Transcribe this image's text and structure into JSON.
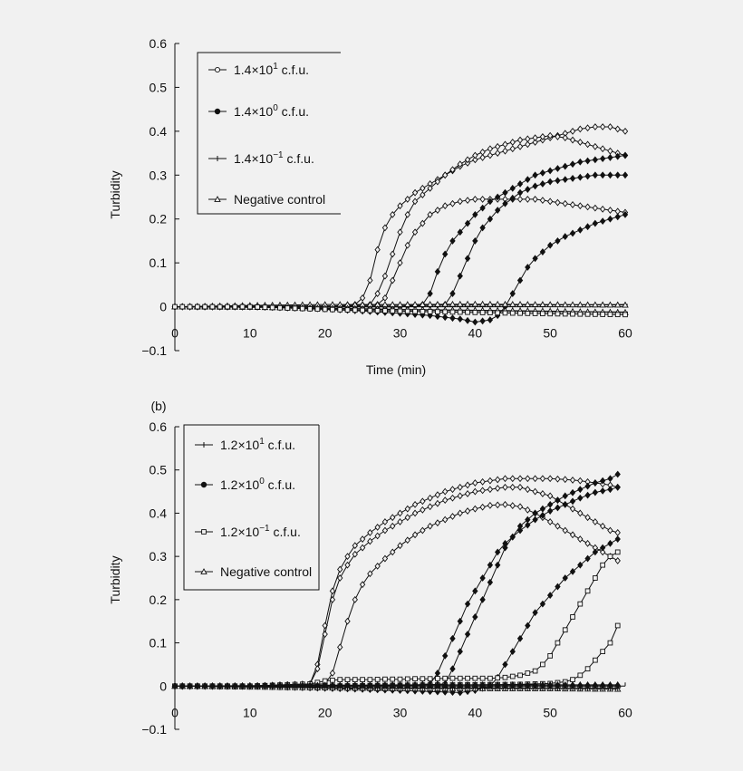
{
  "chart_data": [
    {
      "type": "line",
      "panel_label": "",
      "xlabel": "Time (min)",
      "ylabel": "Turbidity",
      "xlim": [
        0,
        60
      ],
      "ylim": [
        -0.1,
        0.6
      ],
      "x_ticks": [
        0,
        10,
        20,
        30,
        40,
        50,
        60
      ],
      "y_ticks": [
        -0.1,
        0,
        0.1,
        0.2,
        0.3,
        0.4,
        0.5,
        0.6
      ],
      "grid": false,
      "legend_position": "top-left",
      "legend": [
        {
          "mantissa": "1.4",
          "exp": "1",
          "suffix": "c.f.u.",
          "marker": "open-circle"
        },
        {
          "mantissa": "1.4",
          "exp": "0",
          "suffix": "c.f.u.",
          "marker": "filled-circle"
        },
        {
          "mantissa": "1.4",
          "exp": "−1",
          "suffix": "c.f.u.",
          "marker": "plus"
        },
        {
          "text": "Negative control",
          "marker": "open-triangle"
        }
      ],
      "series": [
        {
          "legend_index": 0,
          "marker": "open-diamond",
          "x": [
            0,
            10,
            20,
            24,
            25,
            26,
            27,
            28,
            29,
            30,
            32,
            34,
            36,
            38,
            40,
            42,
            44,
            46,
            48,
            50,
            52,
            54,
            56,
            58,
            60
          ],
          "values": [
            0,
            0,
            0,
            0.005,
            0.02,
            0.06,
            0.13,
            0.18,
            0.21,
            0.23,
            0.26,
            0.28,
            0.3,
            0.32,
            0.335,
            0.345,
            0.355,
            0.365,
            0.375,
            0.385,
            0.395,
            0.405,
            0.41,
            0.41,
            0.4
          ]
        },
        {
          "legend_index": 0,
          "marker": "open-diamond",
          "x": [
            0,
            10,
            20,
            26,
            27,
            28,
            29,
            30,
            31,
            32,
            34,
            36,
            38,
            40,
            42,
            44,
            46,
            48,
            50,
            52,
            54,
            56,
            58,
            60
          ],
          "values": [
            0,
            0,
            0,
            0.005,
            0.03,
            0.07,
            0.12,
            0.17,
            0.21,
            0.24,
            0.27,
            0.3,
            0.325,
            0.345,
            0.36,
            0.37,
            0.38,
            0.385,
            0.39,
            0.385,
            0.375,
            0.365,
            0.355,
            0.345
          ]
        },
        {
          "legend_index": 0,
          "marker": "open-diamond",
          "x": [
            0,
            10,
            20,
            27,
            28,
            29,
            30,
            31,
            32,
            33,
            34,
            36,
            38,
            40,
            42,
            44,
            46,
            48,
            50,
            52,
            54,
            56,
            58,
            60
          ],
          "values": [
            0,
            0,
            0,
            0.005,
            0.02,
            0.06,
            0.1,
            0.14,
            0.17,
            0.19,
            0.21,
            0.23,
            0.24,
            0.245,
            0.245,
            0.245,
            0.245,
            0.245,
            0.24,
            0.235,
            0.23,
            0.225,
            0.22,
            0.215
          ]
        },
        {
          "legend_index": 1,
          "marker": "filled-diamond",
          "x": [
            0,
            10,
            20,
            30,
            33,
            34,
            35,
            36,
            37,
            38,
            39,
            40,
            42,
            44,
            46,
            48,
            50,
            52,
            54,
            56,
            58,
            60
          ],
          "values": [
            0,
            0,
            0,
            0,
            0.005,
            0.03,
            0.08,
            0.12,
            0.15,
            0.17,
            0.19,
            0.21,
            0.24,
            0.26,
            0.28,
            0.3,
            0.31,
            0.32,
            0.33,
            0.335,
            0.34,
            0.345
          ]
        },
        {
          "legend_index": 1,
          "marker": "filled-diamond",
          "x": [
            0,
            10,
            20,
            30,
            36,
            37,
            38,
            39,
            40,
            41,
            42,
            43,
            44,
            46,
            48,
            50,
            52,
            54,
            56,
            58,
            60
          ],
          "values": [
            0,
            0,
            0,
            0,
            0.005,
            0.03,
            0.07,
            0.11,
            0.15,
            0.18,
            0.2,
            0.22,
            0.235,
            0.26,
            0.275,
            0.285,
            0.29,
            0.295,
            0.3,
            0.3,
            0.3
          ]
        },
        {
          "legend_index": 1,
          "marker": "filled-diamond",
          "x": [
            0,
            10,
            20,
            30,
            34,
            38,
            40,
            42,
            43,
            44,
            45,
            46,
            47,
            48,
            49,
            50,
            52,
            54,
            56,
            58,
            60
          ],
          "values": [
            0,
            0,
            -0.005,
            -0.015,
            -0.02,
            -0.028,
            -0.035,
            -0.03,
            -0.02,
            0,
            0.03,
            0.06,
            0.09,
            0.11,
            0.125,
            0.14,
            0.16,
            0.175,
            0.19,
            0.2,
            0.21
          ]
        },
        {
          "legend_index": 2,
          "marker": "plus",
          "x": [
            0,
            10,
            20,
            30,
            40,
            50,
            60
          ],
          "values": [
            0,
            0.002,
            0.002,
            0.003,
            0.004,
            0.004,
            0.005
          ]
        },
        {
          "legend_index": 2,
          "marker": "plus",
          "x": [
            0,
            10,
            20,
            30,
            40,
            50,
            60
          ],
          "values": [
            0,
            0,
            -0.004,
            -0.007,
            -0.009,
            -0.011,
            -0.012
          ]
        },
        {
          "legend_index": 3,
          "marker": "open-triangle",
          "x": [
            0,
            10,
            20,
            30,
            40,
            50,
            60
          ],
          "values": [
            0,
            0.003,
            0.005,
            0.005,
            0.006,
            0.005,
            0.004
          ]
        },
        {
          "legend_index": 3,
          "marker": "open-triangle",
          "x": [
            0,
            10,
            20,
            30,
            40,
            50,
            60
          ],
          "values": [
            0,
            -0.001,
            -0.003,
            -0.006,
            -0.008,
            -0.01,
            -0.013
          ]
        },
        {
          "legend_index": 2,
          "marker": "open-square",
          "x": [
            0,
            10,
            20,
            30,
            40,
            50,
            60
          ],
          "values": [
            0,
            0,
            -0.006,
            -0.01,
            -0.013,
            -0.016,
            -0.018
          ]
        }
      ]
    },
    {
      "type": "line",
      "panel_label": "(b)",
      "xlabel": "",
      "ylabel": "Turbidity",
      "xlim": [
        0,
        60
      ],
      "ylim": [
        -0.1,
        0.6
      ],
      "x_ticks": [
        0,
        10,
        20,
        30,
        40,
        50,
        60
      ],
      "y_ticks": [
        -0.1,
        0,
        0.1,
        0.2,
        0.3,
        0.4,
        0.5,
        0.6
      ],
      "grid": false,
      "legend_position": "top-left",
      "legend": [
        {
          "mantissa": "1.2",
          "exp": "1",
          "suffix": "c.f.u.",
          "marker": "plus"
        },
        {
          "mantissa": "1.2",
          "exp": "0",
          "suffix": "c.f.u.",
          "marker": "filled-circle"
        },
        {
          "mantissa": "1.2",
          "exp": "−1",
          "suffix": "c.f.u.",
          "marker": "open-square"
        },
        {
          "text": "Negative control",
          "marker": "open-triangle"
        }
      ],
      "series": [
        {
          "legend_index": 0,
          "marker": "open-diamond",
          "x": [
            0,
            10,
            18,
            19,
            20,
            21,
            22,
            23,
            24,
            26,
            28,
            30,
            32,
            34,
            36,
            38,
            40,
            42,
            44,
            46,
            48,
            50,
            52,
            54,
            56,
            58,
            59
          ],
          "values": [
            0,
            0,
            0.005,
            0.05,
            0.14,
            0.22,
            0.27,
            0.3,
            0.325,
            0.355,
            0.38,
            0.4,
            0.42,
            0.435,
            0.45,
            0.46,
            0.47,
            0.475,
            0.48,
            0.48,
            0.48,
            0.48,
            0.478,
            0.475,
            0.47,
            0.465,
            0.46
          ]
        },
        {
          "legend_index": 0,
          "marker": "open-diamond",
          "x": [
            0,
            10,
            18,
            19,
            20,
            21,
            22,
            23,
            24,
            26,
            28,
            30,
            32,
            34,
            36,
            38,
            40,
            42,
            44,
            46,
            48,
            50,
            52,
            54,
            56,
            58,
            59
          ],
          "values": [
            0,
            0,
            0.005,
            0.04,
            0.12,
            0.2,
            0.25,
            0.28,
            0.305,
            0.335,
            0.36,
            0.38,
            0.4,
            0.415,
            0.43,
            0.44,
            0.45,
            0.455,
            0.46,
            0.46,
            0.45,
            0.44,
            0.42,
            0.4,
            0.38,
            0.36,
            0.355
          ]
        },
        {
          "legend_index": 0,
          "marker": "open-diamond",
          "x": [
            0,
            10,
            20,
            21,
            22,
            23,
            24,
            25,
            26,
            28,
            30,
            32,
            34,
            36,
            38,
            40,
            42,
            44,
            46,
            48,
            50,
            52,
            54,
            56,
            58,
            59
          ],
          "values": [
            0,
            0,
            0.005,
            0.03,
            0.09,
            0.15,
            0.2,
            0.235,
            0.26,
            0.295,
            0.325,
            0.35,
            0.37,
            0.385,
            0.4,
            0.41,
            0.418,
            0.42,
            0.415,
            0.4,
            0.38,
            0.36,
            0.34,
            0.32,
            0.3,
            0.29
          ]
        },
        {
          "legend_index": 1,
          "marker": "filled-diamond",
          "x": [
            0,
            10,
            20,
            30,
            34,
            35,
            36,
            37,
            38,
            39,
            40,
            41,
            42,
            43,
            44,
            46,
            48,
            50,
            52,
            54,
            56,
            58,
            59
          ],
          "values": [
            0,
            0,
            0,
            0,
            0.005,
            0.03,
            0.07,
            0.11,
            0.15,
            0.19,
            0.22,
            0.25,
            0.28,
            0.31,
            0.33,
            0.36,
            0.385,
            0.405,
            0.42,
            0.435,
            0.448,
            0.455,
            0.46
          ]
        },
        {
          "legend_index": 1,
          "marker": "filled-diamond",
          "x": [
            0,
            10,
            20,
            30,
            36,
            37,
            38,
            39,
            40,
            41,
            42,
            43,
            44,
            46,
            48,
            50,
            52,
            54,
            56,
            58,
            59
          ],
          "values": [
            0,
            0,
            0,
            0,
            0.005,
            0.04,
            0.08,
            0.12,
            0.16,
            0.2,
            0.24,
            0.28,
            0.32,
            0.37,
            0.4,
            0.42,
            0.44,
            0.455,
            0.47,
            0.48,
            0.49
          ]
        },
        {
          "legend_index": 1,
          "marker": "filled-diamond",
          "x": [
            0,
            10,
            20,
            30,
            38,
            40,
            42,
            43,
            44,
            45,
            46,
            47,
            48,
            49,
            50,
            52,
            54,
            56,
            58,
            59
          ],
          "values": [
            0,
            0,
            -0.005,
            -0.01,
            -0.015,
            -0.01,
            0,
            0.02,
            0.05,
            0.08,
            0.11,
            0.14,
            0.17,
            0.19,
            0.21,
            0.25,
            0.28,
            0.31,
            0.33,
            0.34
          ]
        },
        {
          "legend_index": 2,
          "marker": "open-square",
          "x": [
            0,
            10,
            18,
            20,
            22,
            24,
            26,
            28,
            30,
            32,
            34,
            36,
            38,
            40,
            42,
            44,
            46,
            48,
            49,
            50,
            51,
            52,
            53,
            54,
            55,
            56,
            57,
            58,
            59
          ],
          "values": [
            0,
            0,
            0.005,
            0.012,
            0.015,
            0.015,
            0.015,
            0.016,
            0.016,
            0.017,
            0.017,
            0.018,
            0.018,
            0.018,
            0.018,
            0.02,
            0.025,
            0.035,
            0.05,
            0.07,
            0.1,
            0.13,
            0.16,
            0.19,
            0.22,
            0.25,
            0.28,
            0.3,
            0.31
          ]
        },
        {
          "legend_index": 2,
          "marker": "open-square",
          "x": [
            0,
            10,
            20,
            30,
            40,
            46,
            50,
            52,
            53,
            54,
            55,
            56,
            57,
            58,
            59
          ],
          "values": [
            0,
            0,
            0,
            0.002,
            0.003,
            0.004,
            0.006,
            0.01,
            0.015,
            0.025,
            0.04,
            0.06,
            0.08,
            0.1,
            0.14
          ]
        },
        {
          "legend_index": 3,
          "marker": "open-triangle",
          "x": [
            0,
            10,
            20,
            30,
            40,
            50,
            59
          ],
          "values": [
            0,
            0.001,
            0.002,
            0.003,
            0.003,
            0.003,
            0.003
          ]
        },
        {
          "legend_index": 3,
          "marker": "open-triangle",
          "x": [
            0,
            10,
            20,
            30,
            40,
            50,
            59
          ],
          "values": [
            0,
            -0.002,
            -0.004,
            -0.006,
            -0.006,
            -0.006,
            -0.007
          ]
        },
        {
          "legend_index": 2,
          "marker": "plus",
          "x": [
            0,
            10,
            20,
            30,
            40,
            50,
            59
          ],
          "values": [
            0,
            0,
            -0.003,
            -0.004,
            -0.004,
            -0.005,
            -0.005
          ]
        },
        {
          "legend_index": 1,
          "marker": "filled-diamond",
          "x": [
            0,
            10,
            20,
            30,
            40,
            50,
            59
          ],
          "values": [
            0,
            0,
            0.001,
            0.002,
            0.002,
            0.002,
            0.002
          ]
        }
      ]
    }
  ]
}
